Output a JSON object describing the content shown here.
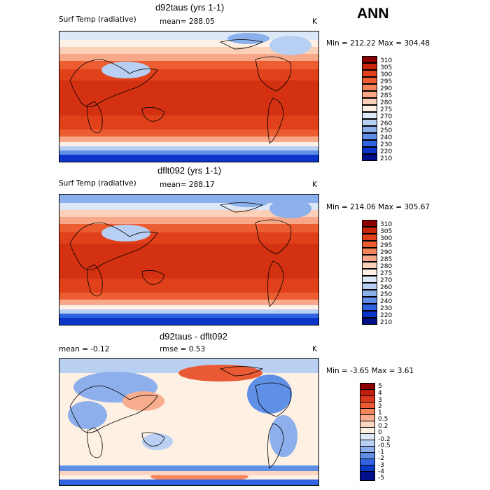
{
  "season": "ANN",
  "panels": [
    {
      "title": "d92taus (yrs 1-1)",
      "variable": "Surf Temp (radiative)",
      "mean_text": "mean= 288.05",
      "units": "K",
      "minmax_text": "Min = 212.22  Max = 304.48",
      "levels": [
        "310",
        "305",
        "300",
        "295",
        "290",
        "285",
        "280",
        "275",
        "270",
        "260",
        "250",
        "240",
        "230",
        "220",
        "210"
      ],
      "colors": [
        "#8b0000",
        "#c8250c",
        "#e0401a",
        "#ec5e32",
        "#f4855a",
        "#f8a888",
        "#fbcfb8",
        "#fff0e6",
        "#dce8f8",
        "#b7cff2",
        "#8cb0ec",
        "#5f8ee6",
        "#2f63e0",
        "#0a35c8",
        "#00108a"
      ]
    },
    {
      "title": "dflt092 (yrs 1-1)",
      "variable": "Surf Temp (radiative)",
      "mean_text": "mean= 288.17",
      "units": "K",
      "minmax_text": "Min = 214.06  Max = 305.67",
      "levels": [
        "310",
        "305",
        "300",
        "295",
        "290",
        "285",
        "280",
        "275",
        "270",
        "260",
        "250",
        "240",
        "230",
        "220",
        "210"
      ],
      "colors": [
        "#8b0000",
        "#c8250c",
        "#e0401a",
        "#ec5e32",
        "#f4855a",
        "#f8a888",
        "#fbcfb8",
        "#fff0e6",
        "#dce8f8",
        "#b7cff2",
        "#8cb0ec",
        "#5f8ee6",
        "#2f63e0",
        "#0a35c8",
        "#00108a"
      ]
    },
    {
      "title": "d92taus - dflt092",
      "mean_text": "mean =   -0.12",
      "rmse_text": "rmse =    0.53",
      "units": "K",
      "minmax_text": "Min =  -3.65  Max =    3.61",
      "levels": [
        "5",
        "4",
        "3",
        "2",
        "1",
        "0.5",
        "0.2",
        "0",
        "-0.2",
        "-0.5",
        "-1",
        "-2",
        "-3",
        "-4",
        "-5"
      ],
      "colors": [
        "#8b0000",
        "#c0200c",
        "#dc3a1c",
        "#ea5a34",
        "#f4855c",
        "#f8ad8e",
        "#fcd6c0",
        "#fff0e4",
        "#dce8f8",
        "#b9d0f2",
        "#8db0ec",
        "#6090e6",
        "#3064e0",
        "#0c38c8",
        "#00108a"
      ]
    }
  ]
}
